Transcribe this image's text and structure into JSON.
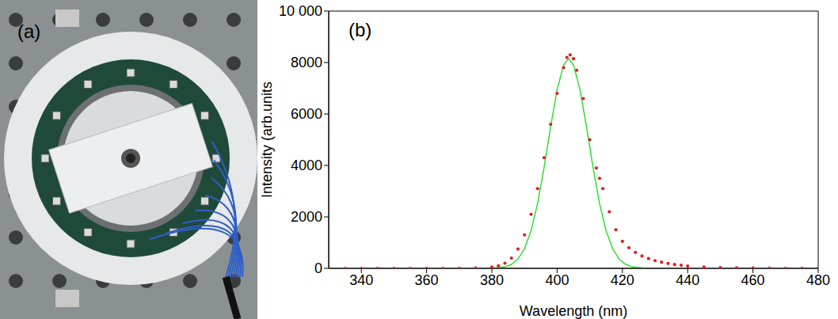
{
  "photo": {
    "label": "(a)"
  },
  "chart_data": {
    "type": "scatter",
    "panel_label": "(b)",
    "x_label": "Wavelength (nm)",
    "y_label": "Intensity (arb.units",
    "xlim": [
      330,
      480
    ],
    "xticks": [
      340,
      360,
      380,
      400,
      420,
      440,
      460,
      480
    ],
    "ylim": [
      0,
      10000
    ],
    "yticks": [
      0,
      2000,
      4000,
      6000,
      8000,
      {
        "value": 10000,
        "label": "10 000"
      }
    ],
    "grid": false,
    "series": [
      {
        "type": "scatter",
        "color": "#dd1f1f",
        "marker": "circle",
        "x": [
          330,
          335,
          340,
          345,
          350,
          355,
          360,
          365,
          370,
          375,
          380,
          382,
          384,
          386,
          388,
          390,
          392,
          394,
          396,
          398,
          400,
          402,
          403,
          404,
          405,
          406,
          408,
          410,
          412,
          413,
          414,
          416,
          418,
          420,
          422,
          424,
          426,
          428,
          430,
          432,
          434,
          436,
          438,
          440,
          445,
          450,
          455,
          460,
          465,
          470,
          475,
          480
        ],
        "values": [
          0,
          0,
          0,
          0,
          0,
          0,
          0,
          0,
          0,
          10,
          50,
          100,
          200,
          400,
          750,
          1300,
          2100,
          3100,
          4300,
          5600,
          6800,
          7800,
          8200,
          8300,
          8150,
          7700,
          6600,
          5000,
          3900,
          3500,
          3100,
          2200,
          1500,
          1050,
          800,
          620,
          480,
          380,
          300,
          240,
          190,
          150,
          120,
          90,
          50,
          30,
          20,
          10,
          5,
          0,
          0,
          0
        ]
      },
      {
        "type": "line",
        "color": "#33dd33",
        "line_style": "solid",
        "x": [
          380,
          384,
          386,
          388,
          390,
          392,
          394,
          396,
          398,
          400,
          402,
          403.5,
          405,
          407,
          409,
          411,
          413,
          415,
          417,
          419,
          421,
          423,
          427
        ],
        "values": [
          6,
          58,
          152,
          360,
          762,
          1460,
          2520,
          3920,
          5500,
          6950,
          7910,
          8150,
          7910,
          6950,
          5500,
          3920,
          2520,
          1460,
          762,
          360,
          152,
          58,
          6
        ]
      }
    ]
  }
}
